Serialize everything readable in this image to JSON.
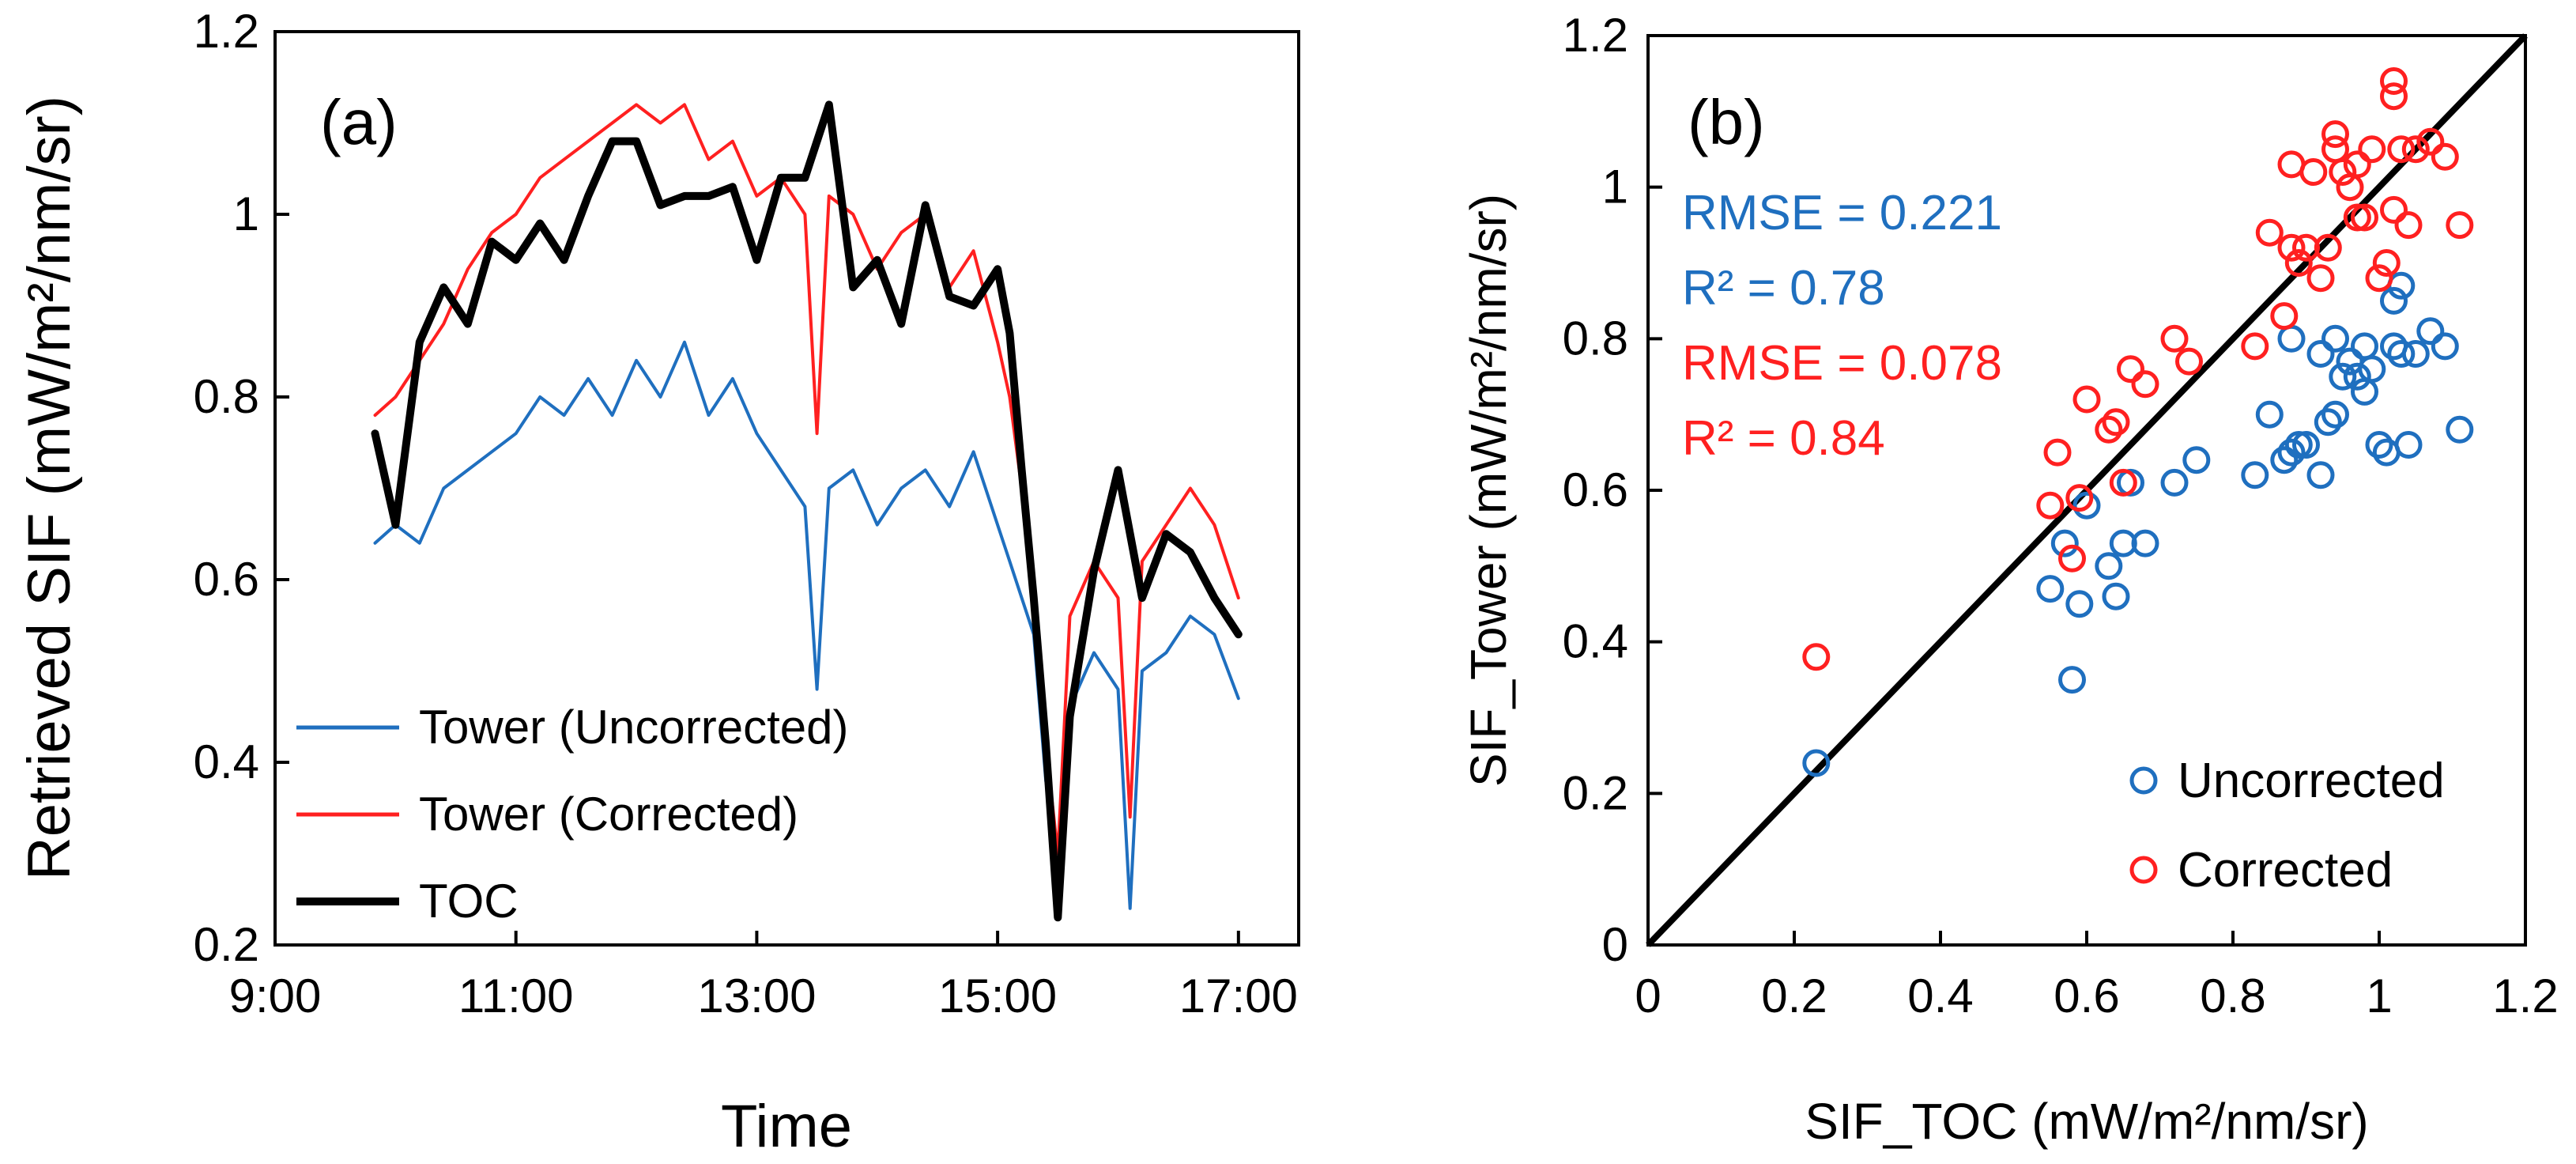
{
  "chart_data": [
    {
      "type": "line",
      "panel_label": "(a)",
      "xlabel": "Time",
      "ylabel": "Retrieved SIF (mW/m²/nm/sr)",
      "xlim": [
        9,
        17.5
      ],
      "ylim": [
        0.2,
        1.2
      ],
      "xticks": [
        9,
        11,
        13,
        15,
        17
      ],
      "xtick_labels": [
        "9:00",
        "11:00",
        "13:00",
        "15:00",
        "17:00"
      ],
      "yticks": [
        0.2,
        0.4,
        0.6,
        0.8,
        1.0,
        1.2
      ],
      "ytick_labels": [
        "0.2",
        "0.4",
        "0.6",
        "0.8",
        "1",
        "1.2"
      ],
      "legend": "bottom-left",
      "colors": {
        "uncorrected": "#1f6fbf",
        "corrected": "#ff2020",
        "toc": "#000000"
      },
      "series": [
        {
          "name": "Tower (Uncorrected)",
          "color": "#1f6fbf",
          "x": [
            9.83,
            10.0,
            10.2,
            10.4,
            10.6,
            10.8,
            11.0,
            11.2,
            11.4,
            11.6,
            11.8,
            12.0,
            12.2,
            12.4,
            12.6,
            12.8,
            13.0,
            13.2,
            13.4,
            13.5,
            13.6,
            13.8,
            14.0,
            14.2,
            14.4,
            14.6,
            14.8,
            15.0,
            15.1,
            15.2,
            15.3,
            15.4,
            15.5,
            15.6,
            15.8,
            16.0,
            16.1,
            16.2,
            16.4,
            16.6,
            16.8,
            17.0
          ],
          "y": [
            0.64,
            0.66,
            0.64,
            0.7,
            0.72,
            0.74,
            0.76,
            0.8,
            0.78,
            0.82,
            0.78,
            0.84,
            0.8,
            0.86,
            0.78,
            0.82,
            0.76,
            0.72,
            0.68,
            0.48,
            0.7,
            0.72,
            0.66,
            0.7,
            0.72,
            0.68,
            0.74,
            0.66,
            0.62,
            0.58,
            0.54,
            0.38,
            0.3,
            0.46,
            0.52,
            0.48,
            0.24,
            0.5,
            0.52,
            0.56,
            0.54,
            0.47
          ]
        },
        {
          "name": "Tower (Corrected)",
          "color": "#ff2020",
          "x": [
            9.83,
            10.0,
            10.2,
            10.4,
            10.6,
            10.8,
            11.0,
            11.2,
            11.4,
            11.6,
            11.8,
            12.0,
            12.2,
            12.4,
            12.6,
            12.8,
            13.0,
            13.2,
            13.4,
            13.5,
            13.6,
            13.8,
            14.0,
            14.2,
            14.4,
            14.6,
            14.8,
            15.0,
            15.1,
            15.2,
            15.3,
            15.4,
            15.5,
            15.6,
            15.8,
            16.0,
            16.1,
            16.2,
            16.4,
            16.6,
            16.8,
            17.0
          ],
          "y": [
            0.78,
            0.8,
            0.84,
            0.88,
            0.94,
            0.98,
            1.0,
            1.04,
            1.06,
            1.08,
            1.1,
            1.12,
            1.1,
            1.12,
            1.06,
            1.08,
            1.02,
            1.04,
            1.0,
            0.76,
            1.02,
            1.0,
            0.94,
            0.98,
            1.0,
            0.92,
            0.96,
            0.86,
            0.8,
            0.7,
            0.6,
            0.42,
            0.3,
            0.56,
            0.62,
            0.58,
            0.34,
            0.62,
            0.66,
            0.7,
            0.66,
            0.58
          ]
        },
        {
          "name": "TOC",
          "color": "#000000",
          "x": [
            9.83,
            10.0,
            10.2,
            10.4,
            10.6,
            10.8,
            11.0,
            11.2,
            11.4,
            11.6,
            11.8,
            12.0,
            12.2,
            12.4,
            12.6,
            12.8,
            13.0,
            13.2,
            13.4,
            13.6,
            13.8,
            14.0,
            14.2,
            14.4,
            14.6,
            14.8,
            15.0,
            15.1,
            15.2,
            15.3,
            15.4,
            15.5,
            15.6,
            15.8,
            16.0,
            16.2,
            16.4,
            16.6,
            16.8,
            17.0
          ],
          "y": [
            0.76,
            0.66,
            0.86,
            0.92,
            0.88,
            0.97,
            0.95,
            0.99,
            0.95,
            1.02,
            1.08,
            1.08,
            1.01,
            1.02,
            1.02,
            1.03,
            0.95,
            1.04,
            1.04,
            1.12,
            0.92,
            0.95,
            0.88,
            1.01,
            0.91,
            0.9,
            0.94,
            0.87,
            0.72,
            0.58,
            0.42,
            0.23,
            0.45,
            0.61,
            0.72,
            0.58,
            0.65,
            0.63,
            0.58,
            0.54
          ]
        }
      ]
    },
    {
      "type": "scatter",
      "panel_label": "(b)",
      "xlabel": "SIF_TOC (mW/m²/nm/sr)",
      "ylabel": "SIF_Tower (mW/m²/nm/sr)",
      "xlim": [
        0,
        1.2
      ],
      "ylim": [
        0,
        1.2
      ],
      "ticks": [
        0,
        0.2,
        0.4,
        0.6,
        0.8,
        1.0,
        1.2
      ],
      "tick_labels": [
        "0",
        "0.2",
        "0.4",
        "0.6",
        "0.8",
        "1",
        "1.2"
      ],
      "legend": "bottom-right",
      "reference_line": "1:1",
      "annotations": [
        {
          "text": "RMSE = 0.221",
          "color": "#1f6fbf"
        },
        {
          "text": "R² = 0.78",
          "color": "#1f6fbf"
        },
        {
          "text": "RMSE = 0.078",
          "color": "#ff2020"
        },
        {
          "text": "R² = 0.84",
          "color": "#ff2020"
        }
      ],
      "series": [
        {
          "name": "Uncorrected",
          "color": "#1f6fbf",
          "points": [
            [
              0.23,
              0.24
            ],
            [
              0.55,
              0.47
            ],
            [
              0.57,
              0.53
            ],
            [
              0.58,
              0.35
            ],
            [
              0.59,
              0.45
            ],
            [
              0.6,
              0.58
            ],
            [
              0.63,
              0.5
            ],
            [
              0.64,
              0.46
            ],
            [
              0.65,
              0.53
            ],
            [
              0.66,
              0.61
            ],
            [
              0.68,
              0.53
            ],
            [
              0.72,
              0.61
            ],
            [
              0.75,
              0.64
            ],
            [
              0.83,
              0.62
            ],
            [
              0.85,
              0.7
            ],
            [
              0.87,
              0.64
            ],
            [
              0.88,
              0.65
            ],
            [
              0.89,
              0.66
            ],
            [
              0.9,
              0.66
            ],
            [
              0.92,
              0.62
            ],
            [
              0.93,
              0.69
            ],
            [
              0.94,
              0.7
            ],
            [
              0.95,
              0.75
            ],
            [
              0.96,
              0.77
            ],
            [
              0.97,
              0.75
            ],
            [
              0.98,
              0.73
            ],
            [
              0.99,
              0.76
            ],
            [
              1.0,
              0.66
            ],
            [
              1.01,
              0.65
            ],
            [
              1.02,
              0.79
            ],
            [
              1.03,
              0.78
            ],
            [
              1.04,
              0.66
            ],
            [
              1.05,
              0.78
            ],
            [
              1.07,
              0.81
            ],
            [
              1.09,
              0.79
            ],
            [
              1.11,
              0.68
            ],
            [
              0.88,
              0.8
            ],
            [
              0.92,
              0.78
            ],
            [
              1.02,
              0.85
            ],
            [
              1.03,
              0.87
            ],
            [
              0.94,
              0.8
            ],
            [
              0.98,
              0.79
            ]
          ]
        },
        {
          "name": "Corrected",
          "color": "#ff2020",
          "points": [
            [
              0.23,
              0.38
            ],
            [
              0.55,
              0.58
            ],
            [
              0.56,
              0.65
            ],
            [
              0.58,
              0.51
            ],
            [
              0.59,
              0.59
            ],
            [
              0.6,
              0.72
            ],
            [
              0.63,
              0.68
            ],
            [
              0.64,
              0.69
            ],
            [
              0.65,
              0.61
            ],
            [
              0.66,
              0.76
            ],
            [
              0.68,
              0.74
            ],
            [
              0.72,
              0.8
            ],
            [
              0.74,
              0.77
            ],
            [
              0.83,
              0.79
            ],
            [
              0.85,
              0.94
            ],
            [
              0.87,
              0.83
            ],
            [
              0.88,
              0.92
            ],
            [
              0.89,
              0.9
            ],
            [
              0.9,
              0.92
            ],
            [
              0.92,
              0.88
            ],
            [
              0.93,
              0.92
            ],
            [
              0.94,
              1.05
            ],
            [
              0.95,
              1.02
            ],
            [
              0.96,
              1.0
            ],
            [
              0.97,
              0.96
            ],
            [
              0.98,
              0.96
            ],
            [
              0.99,
              1.05
            ],
            [
              1.0,
              0.88
            ],
            [
              1.01,
              0.9
            ],
            [
              1.02,
              0.97
            ],
            [
              1.03,
              1.05
            ],
            [
              1.04,
              0.95
            ],
            [
              1.05,
              1.05
            ],
            [
              1.07,
              1.06
            ],
            [
              1.09,
              1.04
            ],
            [
              1.11,
              0.95
            ],
            [
              0.88,
              1.03
            ],
            [
              0.91,
              1.02
            ],
            [
              1.02,
              1.12
            ],
            [
              1.02,
              1.14
            ],
            [
              0.94,
              1.07
            ],
            [
              0.97,
              1.03
            ]
          ]
        }
      ]
    }
  ]
}
